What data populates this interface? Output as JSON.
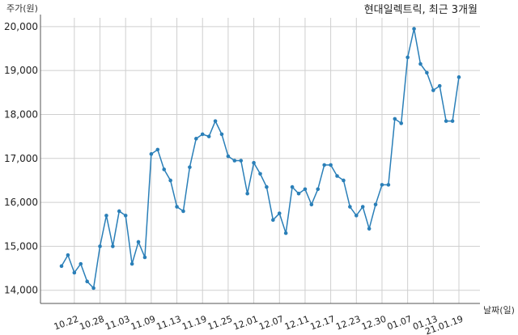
{
  "chart_data": {
    "type": "line",
    "title": "현대일렉트릭, 최근 3개월",
    "ylabel": "주가(원)",
    "xlabel": "날짜(일)",
    "ylim": [
      13700,
      20200
    ],
    "yticks": [
      14000,
      15000,
      16000,
      17000,
      18000,
      19000,
      20000
    ],
    "ytick_labels": [
      "14,000",
      "15,000",
      "16,000",
      "17,000",
      "18,000",
      "19,000",
      "20,000"
    ],
    "xtick_labels": [
      "10.22",
      "10.28",
      "11.03",
      "11.09",
      "11.13",
      "11.19",
      "11.25",
      "12.01",
      "12.07",
      "12.11",
      "12.17",
      "12.23",
      "12.30",
      "01.07",
      "01.13",
      "21.01.19"
    ],
    "xtick_positions": [
      2,
      6,
      10,
      14,
      18,
      22,
      26,
      30,
      34,
      38,
      42,
      46,
      50,
      54,
      58,
      62
    ],
    "grid": true,
    "line_color": "#2a7fb8",
    "series": [
      {
        "values": [
          14550,
          14800,
          14400,
          14600,
          14200,
          14050,
          15000,
          15700,
          15000,
          15800,
          15700,
          14600,
          15100,
          14750,
          17100,
          17200,
          16750,
          16500,
          15900,
          15800,
          16800,
          17450,
          17550,
          17500,
          17850,
          17550,
          17050,
          16950,
          16950,
          16200,
          16900,
          16650,
          16350,
          15600,
          15750,
          15300,
          16350,
          16200,
          16300,
          15950,
          16300,
          16850,
          16850,
          16600,
          16500,
          15900,
          15700,
          15900,
          15400,
          15950,
          16400,
          16400,
          17900,
          17800,
          19300,
          19950,
          19150,
          18950,
          18550,
          18650,
          17850,
          17850,
          18850
        ]
      }
    ]
  }
}
